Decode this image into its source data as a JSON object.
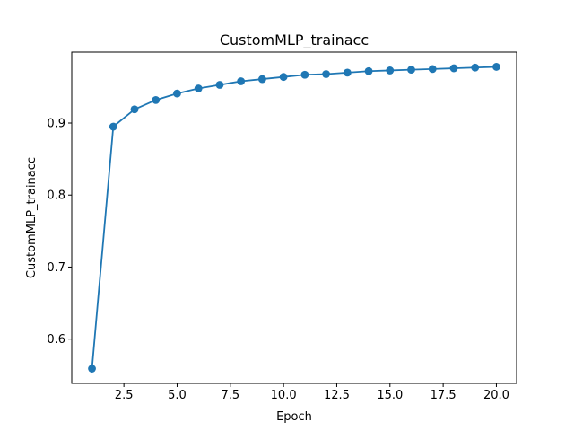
{
  "chart_data": {
    "type": "line",
    "title": "CustomMLP_trainacc",
    "xlabel": "Epoch",
    "ylabel": "CustomMLP_trainacc",
    "xlim": [
      0.05,
      20.95
    ],
    "ylim": [
      0.5385,
      0.9985
    ],
    "x_ticks": [
      {
        "value": 2.5,
        "label": "2.5"
      },
      {
        "value": 5.0,
        "label": "5.0"
      },
      {
        "value": 7.5,
        "label": "7.5"
      },
      {
        "value": 10.0,
        "label": "10.0"
      },
      {
        "value": 12.5,
        "label": "12.5"
      },
      {
        "value": 15.0,
        "label": "15.0"
      },
      {
        "value": 17.5,
        "label": "17.5"
      },
      {
        "value": 20.0,
        "label": "20.0"
      }
    ],
    "y_ticks": [
      {
        "value": 0.6,
        "label": "0.6"
      },
      {
        "value": 0.7,
        "label": "0.7"
      },
      {
        "value": 0.8,
        "label": "0.8"
      },
      {
        "value": 0.9,
        "label": "0.9"
      }
    ],
    "grid": false,
    "legend": "none",
    "series": [
      {
        "color": "#1f77b4",
        "marker": "circle",
        "x": [
          1,
          2,
          3,
          4,
          5,
          6,
          7,
          8,
          9,
          10,
          11,
          12,
          13,
          14,
          15,
          16,
          17,
          18,
          19,
          20
        ],
        "y": [
          0.559,
          0.895,
          0.919,
          0.932,
          0.941,
          0.948,
          0.953,
          0.958,
          0.961,
          0.964,
          0.967,
          0.968,
          0.97,
          0.972,
          0.973,
          0.974,
          0.975,
          0.976,
          0.977,
          0.978
        ]
      }
    ]
  }
}
